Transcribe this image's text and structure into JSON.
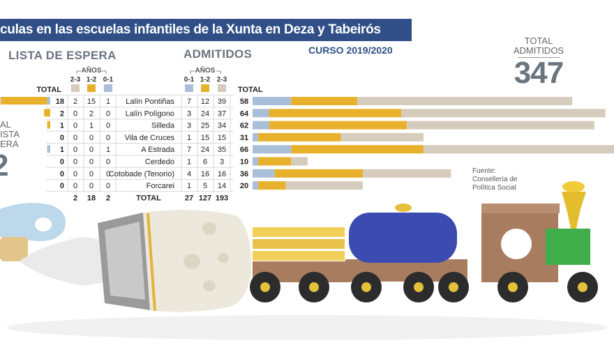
{
  "title": "culas en las escuelas infantiles de la Xunta en Deza y Tabeirós",
  "course": "CURSO 2019/2020",
  "total_admitted_label": [
    "TOTAL",
    "ADMITIDOS"
  ],
  "total_admitted_value": "347",
  "side_total_label": [
    "AL",
    "ISTA",
    "ERA"
  ],
  "side_total_value": "2",
  "source": [
    "Fuente:",
    "Consellería de",
    "Política Social"
  ],
  "colors": {
    "age_2_3": "#d6ccbd",
    "age_1_2": "#e8b12c",
    "age_0_1": "#a9bfd9",
    "banner": "#2f4f86"
  },
  "chart_data": {
    "type": "table",
    "waiting": {
      "header": "LISTA DE ESPERA",
      "age_group_label": "AÑOS",
      "total_header": "TOTAL",
      "columns": [
        "2-3",
        "1-2",
        "0-1"
      ],
      "rows": [
        {
          "total": 18,
          "values": [
            2,
            15,
            1
          ]
        },
        {
          "total": 2,
          "values": [
            0,
            2,
            0
          ]
        },
        {
          "total": 1,
          "values": [
            0,
            1,
            0
          ]
        },
        {
          "total": 0,
          "values": [
            0,
            0,
            0
          ]
        },
        {
          "total": 1,
          "values": [
            0,
            0,
            1
          ]
        },
        {
          "total": 0,
          "values": [
            0,
            0,
            0
          ]
        },
        {
          "total": 0,
          "values": [
            0,
            0,
            0
          ]
        },
        {
          "total": 0,
          "values": [
            0,
            0,
            0
          ]
        }
      ],
      "totals": [
        2,
        18,
        2
      ]
    },
    "centers": [
      "Lalín Pontiñas",
      "Lalín Polígono",
      "Silleda",
      "Vila de Cruces",
      "A Estrada",
      "Cerdedo",
      "Cotobade (Tenorio)",
      "Forcarei"
    ],
    "admitted": {
      "header": "ADMITIDOS",
      "age_group_label": "AÑOS",
      "total_header": "TOTAL",
      "columns": [
        "0-1",
        "1-2",
        "2-3"
      ],
      "rows": [
        {
          "values": [
            7,
            12,
            39
          ],
          "total": 58
        },
        {
          "values": [
            3,
            24,
            37
          ],
          "total": 64
        },
        {
          "values": [
            3,
            25,
            34
          ],
          "total": 62
        },
        {
          "values": [
            1,
            15,
            15
          ],
          "total": 31
        },
        {
          "values": [
            7,
            24,
            35
          ],
          "total": 66
        },
        {
          "values": [
            1,
            6,
            3
          ],
          "total": 10
        },
        {
          "values": [
            4,
            16,
            16
          ],
          "total": 36
        },
        {
          "values": [
            1,
            5,
            14
          ],
          "total": 20
        }
      ],
      "totals_label": "TOTAL",
      "totals": [
        27,
        127,
        193
      ]
    }
  }
}
